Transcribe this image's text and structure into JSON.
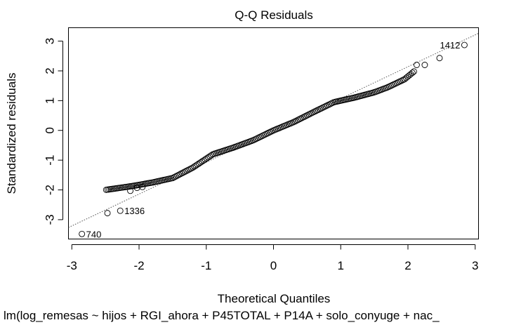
{
  "chart_data": {
    "type": "scatter",
    "title": "Q-Q Residuals",
    "xlabel": "Theoretical Quantiles",
    "ylabel": "Standardized residuals",
    "subtitle": "lm(log_remesas ~ hijos + RGI_ahora + P45TOTAL + P14A + solo_conyuge + nac_",
    "xlim": [
      -3.05,
      3.05
    ],
    "ylim": [
      -3.65,
      3.45
    ],
    "x_ticks": [
      -3,
      -2,
      -1,
      0,
      1,
      2,
      3
    ],
    "x_tick_labels": [
      "-3",
      "-2",
      "-1",
      "0",
      "1",
      "2",
      "3"
    ],
    "y_ticks": [
      -3,
      -2,
      -1,
      0,
      1,
      2,
      3
    ],
    "y_tick_labels": [
      "-3",
      "-2",
      "-1",
      "0",
      "1",
      "2",
      "3"
    ],
    "reference_line": {
      "intercept": 0.0,
      "slope": 1.07
    },
    "curve_knots": [
      [
        -2.5,
        -2.0
      ],
      [
        -2.1,
        -1.87
      ],
      [
        -1.8,
        -1.75
      ],
      [
        -1.5,
        -1.6
      ],
      [
        -1.2,
        -1.25
      ],
      [
        -0.9,
        -0.8
      ],
      [
        -0.6,
        -0.58
      ],
      [
        -0.3,
        -0.33
      ],
      [
        0.0,
        0.0
      ],
      [
        0.3,
        0.28
      ],
      [
        0.6,
        0.62
      ],
      [
        0.9,
        0.95
      ],
      [
        1.2,
        1.1
      ],
      [
        1.5,
        1.28
      ],
      [
        1.7,
        1.45
      ],
      [
        1.95,
        1.72
      ],
      [
        2.1,
        2.0
      ]
    ],
    "points": [
      {
        "x": -2.85,
        "y": -3.48,
        "label": "740"
      },
      {
        "x": -2.47,
        "y": -2.78,
        "label": ""
      },
      {
        "x": -2.28,
        "y": -2.7,
        "label": "1336"
      },
      {
        "x": -2.13,
        "y": -2.03,
        "label": ""
      },
      {
        "x": -2.03,
        "y": -1.93,
        "label": ""
      },
      {
        "x": -1.95,
        "y": -1.9,
        "label": ""
      },
      {
        "x": 2.13,
        "y": 2.2,
        "label": ""
      },
      {
        "x": 2.25,
        "y": 2.2,
        "label": ""
      },
      {
        "x": 2.47,
        "y": 2.43,
        "label": ""
      },
      {
        "x": 2.84,
        "y": 2.87,
        "label": "1412"
      }
    ],
    "n_points": 200
  }
}
